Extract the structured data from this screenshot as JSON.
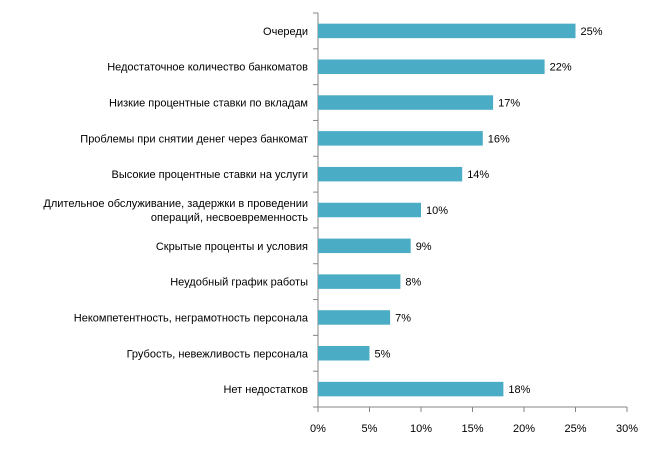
{
  "chart_data": {
    "type": "bar",
    "orientation": "horizontal",
    "categories": [
      "Очереди",
      "Недостаточное  количество банкоматов",
      "Низкие процентные  ставки по вкладам",
      "Проблемы при снятии денег через банкомат",
      "Высокие процентные  ставки на услуги",
      "Длительное обслуживание, задержки в проведении операций, несвоевременность",
      "Скрытые проценты и условия",
      "Неудобный  график работы",
      "Некомпетентность,  неграмотность персонала",
      "Грубость, невежливость  персонала",
      "Нет недостатков"
    ],
    "category_lines": [
      [
        "Очереди"
      ],
      [
        "Недостаточное  количество банкоматов"
      ],
      [
        "Низкие процентные  ставки по вкладам"
      ],
      [
        "Проблемы при снятии денег через банкомат"
      ],
      [
        "Высокие процентные  ставки на услуги"
      ],
      [
        "Длительное обслуживание, задержки в проведении",
        "операций, несвоевременность"
      ],
      [
        "Скрытые проценты и условия"
      ],
      [
        "Неудобный  график работы"
      ],
      [
        "Некомпетентность,  неграмотность персонала"
      ],
      [
        "Грубость, невежливость  персонала"
      ],
      [
        "Нет недостатков"
      ]
    ],
    "values": [
      25,
      22,
      17,
      16,
      14,
      10,
      9,
      8,
      7,
      5,
      18
    ],
    "value_labels": [
      "25%",
      "22%",
      "17%",
      "16%",
      "14%",
      "10%",
      "9%",
      "8%",
      "7%",
      "5%",
      "18%"
    ],
    "xlim": [
      0,
      30
    ],
    "x_ticks": [
      0,
      5,
      10,
      15,
      20,
      25,
      30
    ],
    "x_tick_labels": [
      "0%",
      "5%",
      "10%",
      "15%",
      "20%",
      "25%",
      "30%"
    ],
    "title": "",
    "xlabel": "",
    "ylabel": "",
    "grid": false,
    "legend": "none",
    "bar_color": "#4BACC6"
  }
}
